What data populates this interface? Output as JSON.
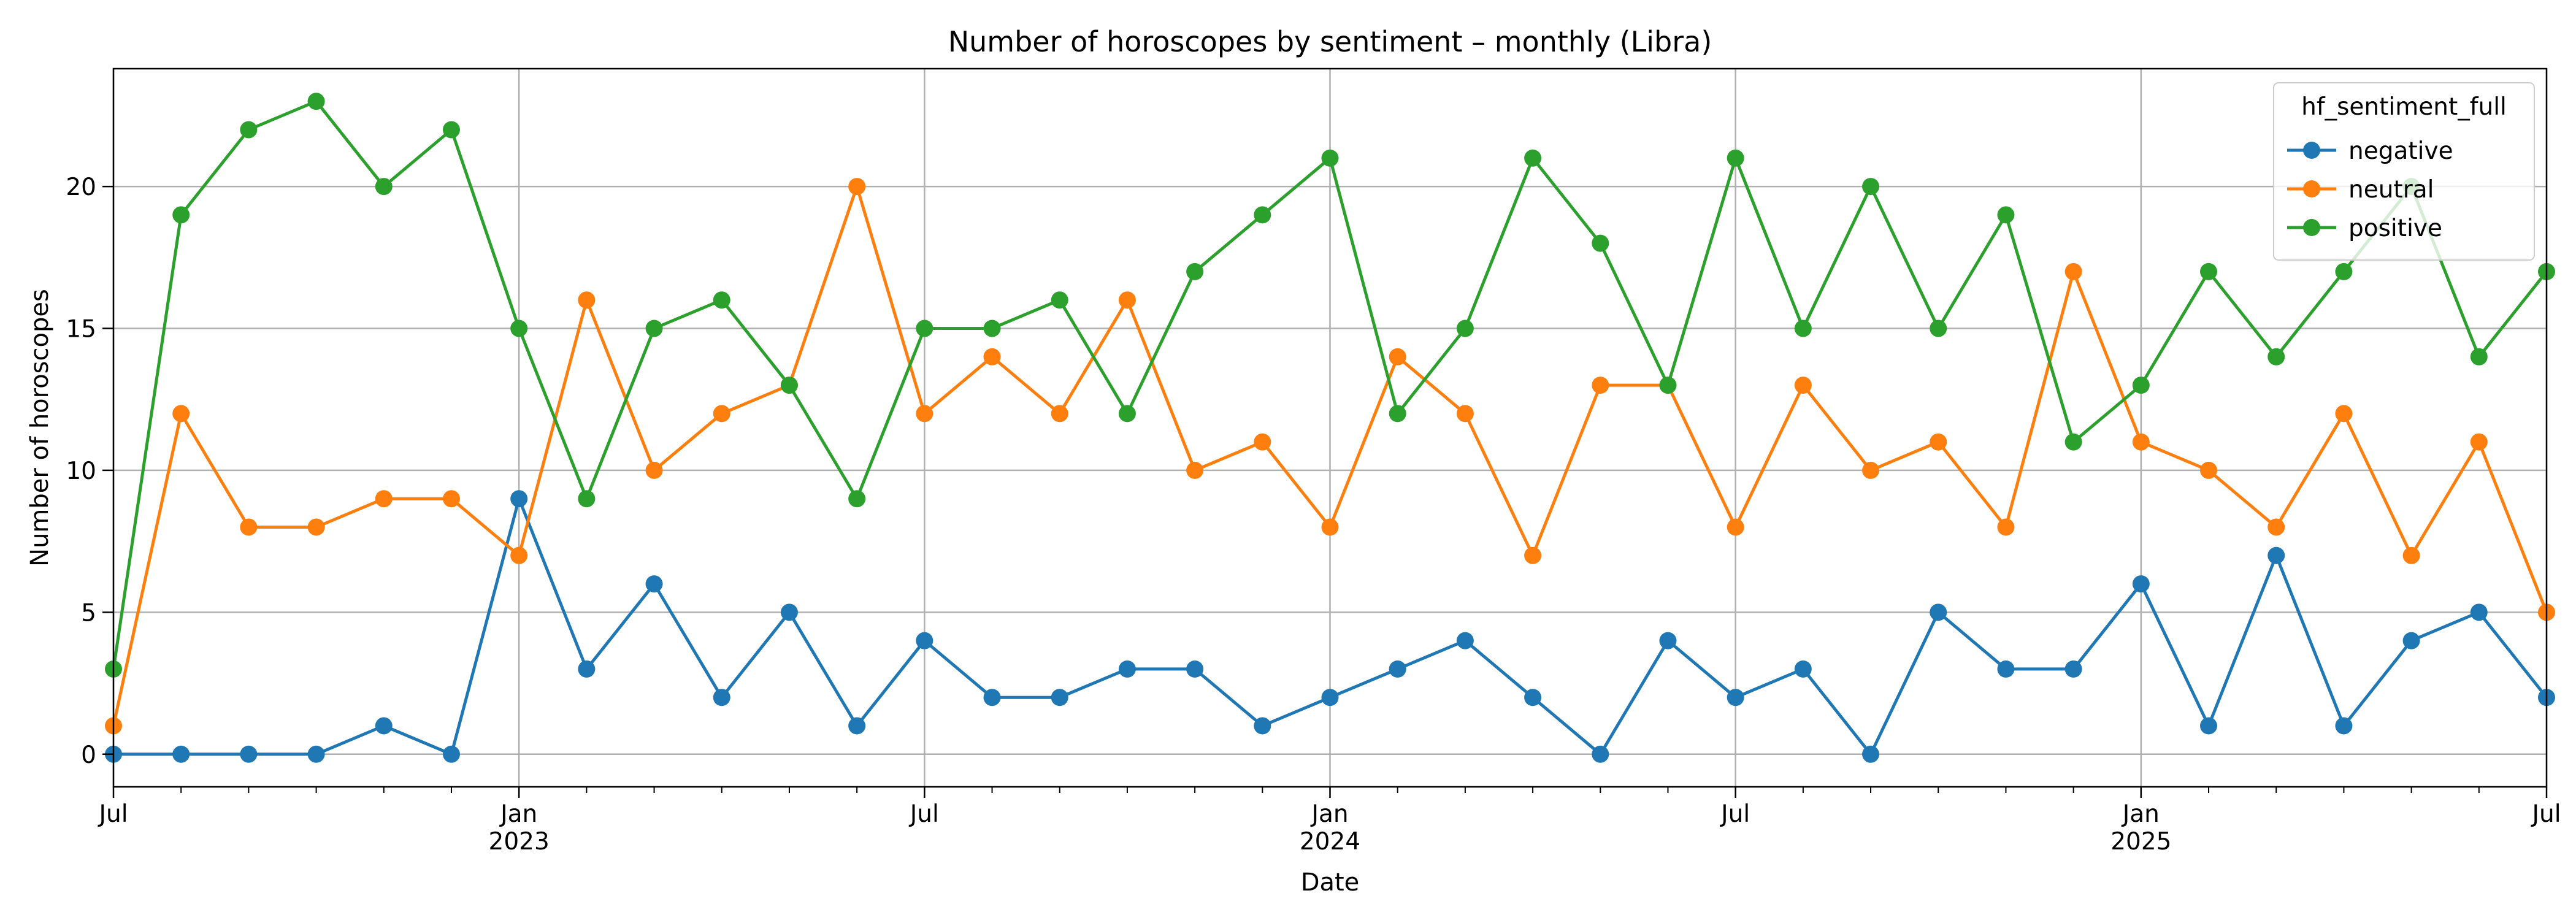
{
  "chart_data": {
    "type": "line",
    "title": "Number of horoscopes by sentiment – monthly (Libra)",
    "xlabel": "Date",
    "ylabel": "Number of horoscopes",
    "ylim": [
      -1.15,
      24.15
    ],
    "x": [
      "2022-07",
      "2022-08",
      "2022-09",
      "2022-10",
      "2022-11",
      "2022-12",
      "2023-01",
      "2023-02",
      "2023-03",
      "2023-04",
      "2023-05",
      "2023-06",
      "2023-07",
      "2023-08",
      "2023-09",
      "2023-10",
      "2023-11",
      "2023-12",
      "2024-01",
      "2024-02",
      "2024-03",
      "2024-04",
      "2024-05",
      "2024-06",
      "2024-07",
      "2024-08",
      "2024-09",
      "2024-10",
      "2024-11",
      "2024-12",
      "2025-01",
      "2025-02",
      "2025-03",
      "2025-04",
      "2025-05",
      "2025-06",
      "2025-07"
    ],
    "xlim": [
      "2022-07",
      "2025-07"
    ],
    "x_ticks": [
      {
        "month": "2022-07",
        "label": "Jul",
        "year": ""
      },
      {
        "month": "2023-01",
        "label": "Jan",
        "year": "2023"
      },
      {
        "month": "2023-07",
        "label": "Jul",
        "year": ""
      },
      {
        "month": "2024-01",
        "label": "Jan",
        "year": "2024"
      },
      {
        "month": "2024-07",
        "label": "Jul",
        "year": ""
      },
      {
        "month": "2025-01",
        "label": "Jan",
        "year": "2025"
      },
      {
        "month": "2025-07",
        "label": "Jul",
        "year": ""
      }
    ],
    "y_ticks": [
      0,
      5,
      10,
      15,
      20
    ],
    "grid": true,
    "legend": {
      "title": "hf_sentiment_full",
      "placement": "top-right"
    },
    "series": [
      {
        "name": "negative",
        "color": "#1f77b4",
        "values": [
          0,
          0,
          0,
          0,
          1,
          0,
          9,
          3,
          6,
          2,
          5,
          1,
          4,
          2,
          2,
          3,
          3,
          1,
          2,
          3,
          4,
          2,
          0,
          4,
          2,
          3,
          0,
          5,
          3,
          3,
          6,
          1,
          7,
          1,
          4,
          5,
          2
        ]
      },
      {
        "name": "neutral",
        "color": "#ff7f0e",
        "values": [
          1,
          12,
          8,
          8,
          9,
          9,
          7,
          16,
          10,
          12,
          13,
          20,
          12,
          14,
          12,
          16,
          10,
          11,
          8,
          14,
          12,
          7,
          13,
          13,
          8,
          13,
          10,
          11,
          8,
          17,
          11,
          10,
          8,
          12,
          7,
          11,
          5
        ]
      },
      {
        "name": "positive",
        "color": "#2ca02c",
        "values": [
          3,
          19,
          22,
          23,
          20,
          22,
          15,
          9,
          15,
          16,
          13,
          9,
          15,
          15,
          16,
          12,
          17,
          19,
          21,
          12,
          15,
          21,
          18,
          13,
          21,
          15,
          20,
          15,
          19,
          11,
          13,
          17,
          14,
          17,
          20,
          14,
          17
        ]
      }
    ]
  }
}
